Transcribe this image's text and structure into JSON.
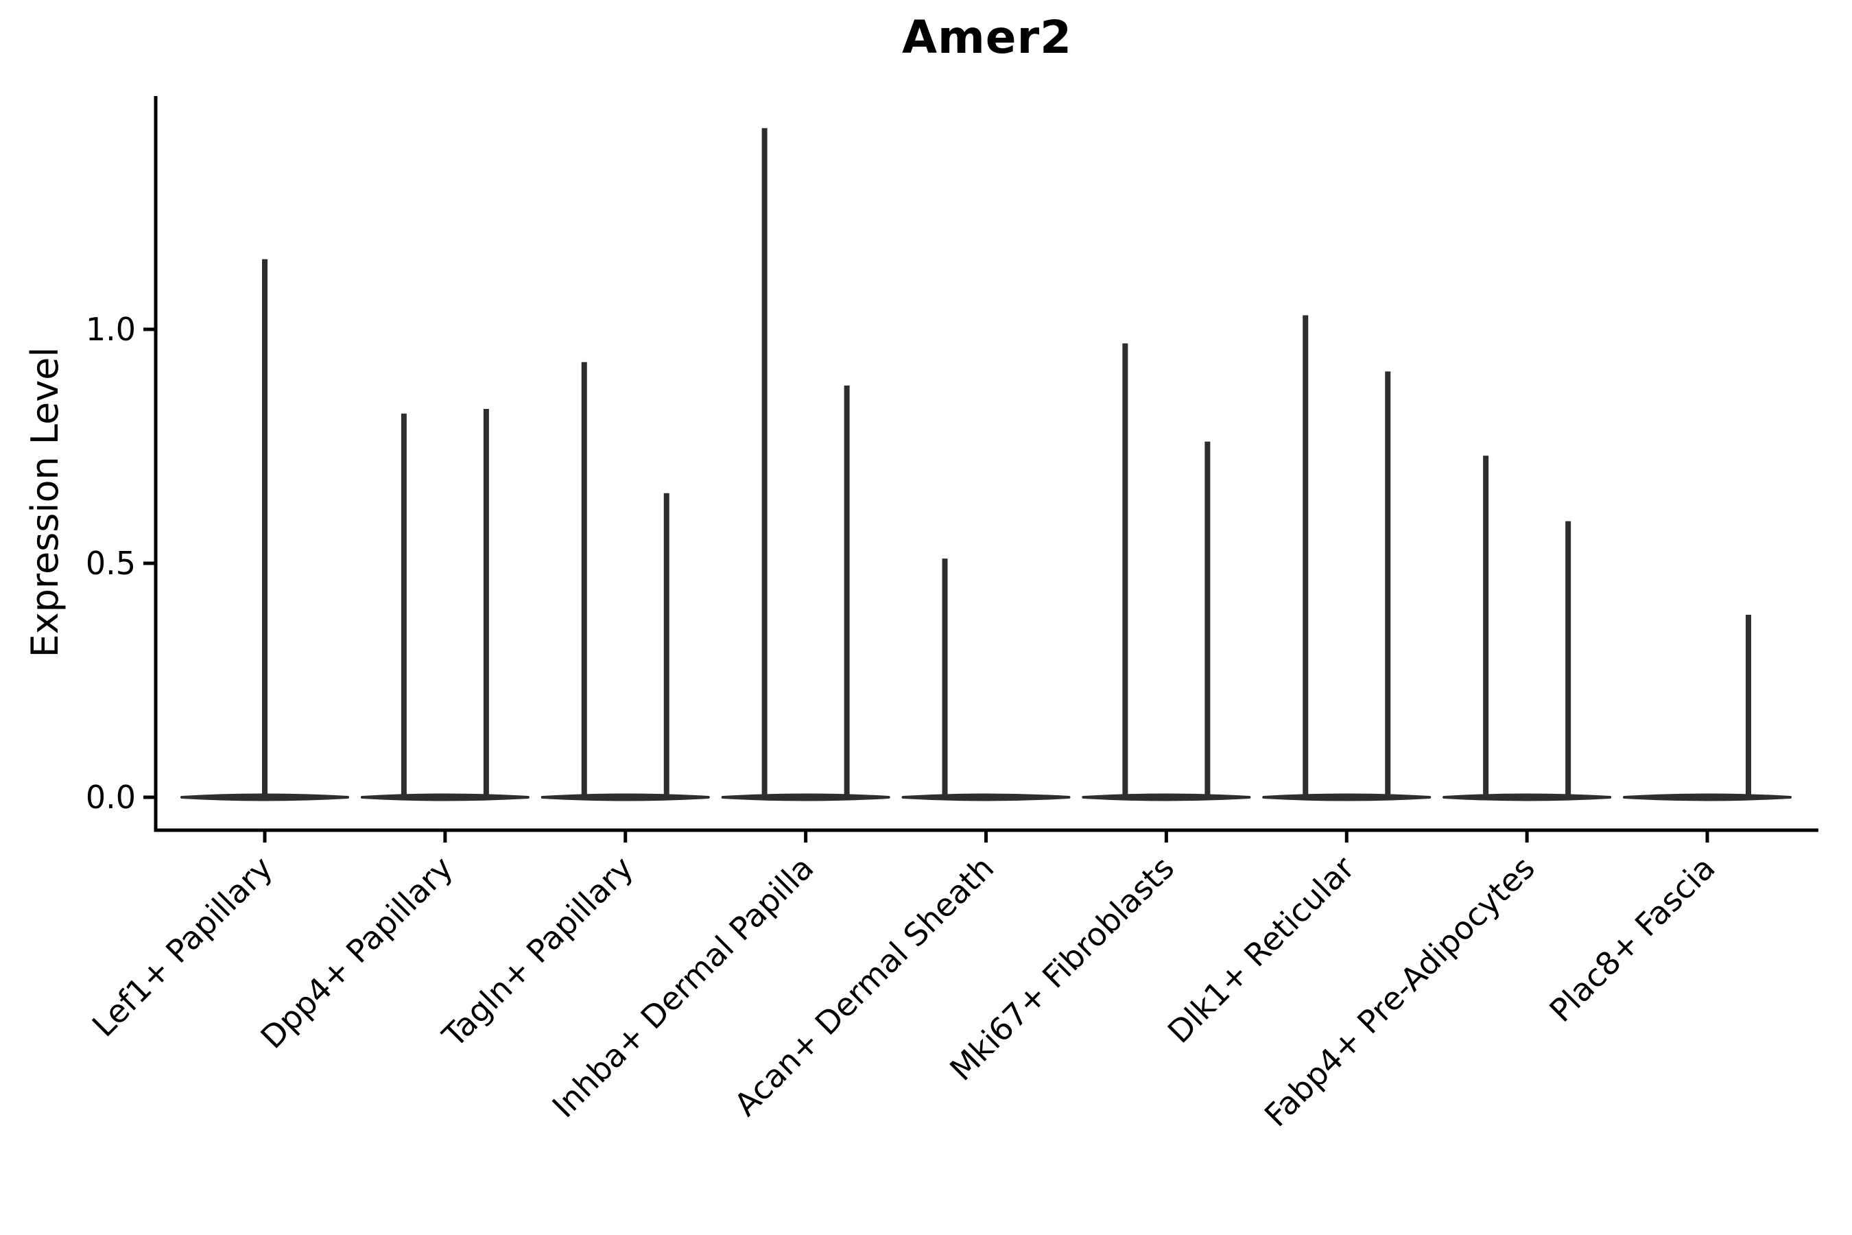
{
  "figure": {
    "title": "Amer2",
    "ylabel": "Expression Level"
  },
  "chart_data": {
    "type": "violin",
    "title": "Amer2",
    "xlabel": "",
    "ylabel": "Expression Level",
    "ylim": [
      -0.07,
      1.5
    ],
    "yticks": {
      "values": [
        0.0,
        0.5,
        1.0
      ],
      "labels": [
        "0.0",
        "0.5",
        "1.0"
      ]
    },
    "grid": false,
    "legend": "none",
    "x_tick_rotation": 45,
    "categories": [
      "Lef1+ Papillary",
      "Dpp4+ Papillary",
      "Tagln+ Papillary",
      "Inhba+ Dermal Papilla",
      "Acan+ Dermal Sheath",
      "Mki67+ Fibroblasts",
      "Dlk1+ Reticular",
      "Fabp4+ Pre-Adipocytes",
      "Plac8+ Fascia"
    ],
    "violins": [
      {
        "category": "Lef1+ Papillary",
        "baseline_value": 0.0,
        "spikes": [
          {
            "position": "center",
            "max": 1.15
          }
        ]
      },
      {
        "category": "Dpp4+ Papillary",
        "baseline_value": 0.0,
        "spikes": [
          {
            "position": "left",
            "max": 0.82
          },
          {
            "position": "right",
            "max": 0.83
          }
        ]
      },
      {
        "category": "Tagln+ Papillary",
        "baseline_value": 0.0,
        "spikes": [
          {
            "position": "left",
            "max": 0.93
          },
          {
            "position": "right",
            "max": 0.65
          }
        ]
      },
      {
        "category": "Inhba+ Dermal Papilla",
        "baseline_value": 0.0,
        "spikes": [
          {
            "position": "left",
            "max": 1.43
          },
          {
            "position": "right",
            "max": 0.88
          }
        ]
      },
      {
        "category": "Acan+ Dermal Sheath",
        "baseline_value": 0.0,
        "spikes": [
          {
            "position": "left",
            "max": 0.51
          }
        ]
      },
      {
        "category": "Mki67+ Fibroblasts",
        "baseline_value": 0.0,
        "spikes": [
          {
            "position": "left",
            "max": 0.97
          },
          {
            "position": "right",
            "max": 0.76
          }
        ]
      },
      {
        "category": "Dlk1+ Reticular",
        "baseline_value": 0.0,
        "spikes": [
          {
            "position": "left",
            "max": 1.03
          },
          {
            "position": "right",
            "max": 0.91
          }
        ]
      },
      {
        "category": "Fabp4+ Pre-Adipocytes",
        "baseline_value": 0.0,
        "spikes": [
          {
            "position": "left",
            "max": 0.73
          },
          {
            "position": "right",
            "max": 0.59
          }
        ]
      },
      {
        "category": "Plac8+ Fascia",
        "baseline_value": 0.0,
        "spikes": [
          {
            "position": "right",
            "max": 0.39
          }
        ]
      }
    ],
    "colors": {
      "violin": "#2e2e2e",
      "axis": "#000000",
      "text": "#000000",
      "background": "#ffffff"
    }
  }
}
